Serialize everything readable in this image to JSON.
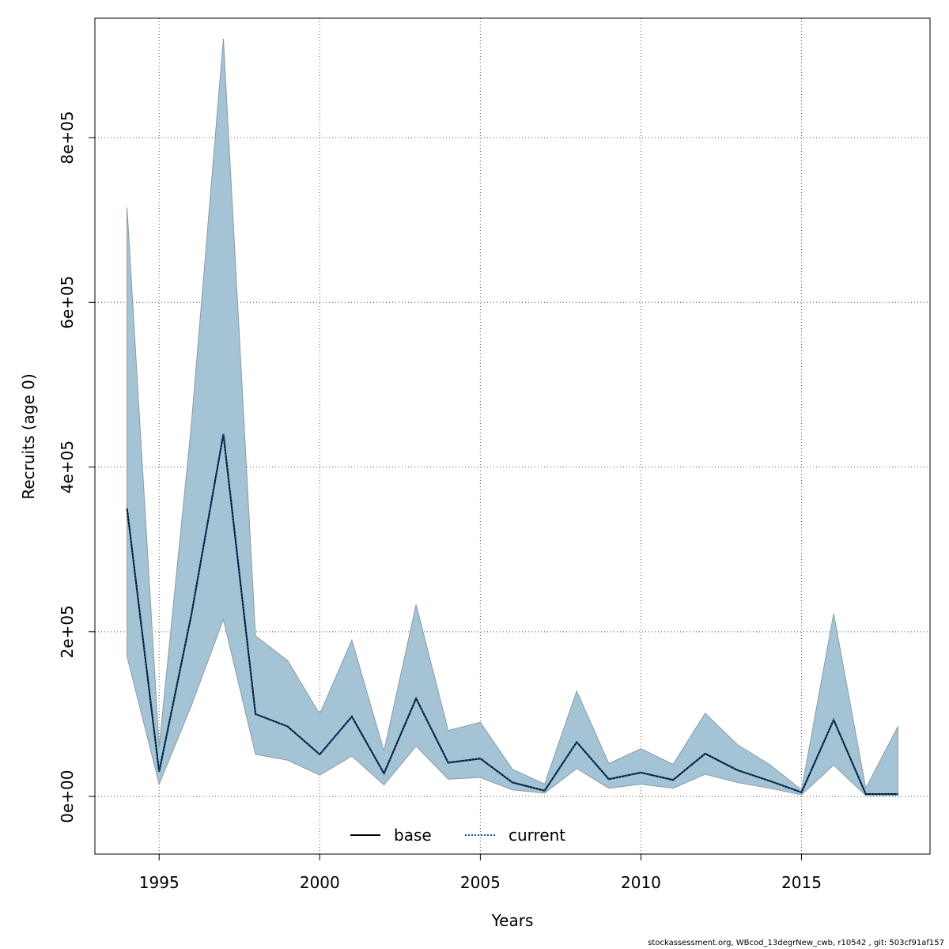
{
  "chart_data": {
    "type": "area",
    "xlabel": "Years",
    "ylabel": "Recruits (age 0)",
    "xlim": [
      1993,
      2019
    ],
    "ylim": [
      -70000,
      945000
    ],
    "x_ticks": [
      1995,
      2000,
      2005,
      2010,
      2015
    ],
    "x_tick_labels": [
      "1995",
      "2000",
      "2005",
      "2010",
      "2015"
    ],
    "y_ticks": [
      0,
      200000,
      400000,
      600000,
      800000
    ],
    "y_tick_labels": [
      "0e+00",
      "2e+05",
      "4e+05",
      "6e+05",
      "8e+05"
    ],
    "grid": true,
    "x": [
      1994,
      1995,
      1996,
      1997,
      1998,
      1999,
      2000,
      2001,
      2002,
      2003,
      2004,
      2005,
      2006,
      2007,
      2008,
      2009,
      2010,
      2011,
      2012,
      2013,
      2014,
      2015,
      2016,
      2017,
      2018
    ],
    "upper": [
      715000,
      60000,
      450000,
      920000,
      195000,
      165000,
      100000,
      190000,
      55000,
      233000,
      80000,
      90000,
      33000,
      15000,
      128000,
      40000,
      58000,
      39000,
      101000,
      63000,
      39000,
      8000,
      222000,
      10000,
      85000
    ],
    "lower": [
      170000,
      15000,
      110000,
      215000,
      51000,
      44000,
      26000,
      49000,
      14000,
      61000,
      21000,
      23000,
      8000,
      4000,
      34000,
      10000,
      15000,
      10000,
      27000,
      17000,
      10000,
      2000,
      38000,
      1000,
      1000
    ],
    "series": [
      {
        "name": "base",
        "style": "solid",
        "color": "#000000",
        "values": [
          350000,
          30000,
          220000,
          440000,
          100000,
          85000,
          51000,
          97000,
          28000,
          119000,
          41000,
          46000,
          17000,
          7000,
          66000,
          21000,
          29000,
          20000,
          52000,
          32000,
          19000,
          5000,
          93000,
          3000,
          3000
        ]
      },
      {
        "name": "current",
        "style": "dotted",
        "color": "#0b5394",
        "values": [
          350000,
          30000,
          220000,
          440000,
          100000,
          85000,
          51000,
          97000,
          28000,
          119000,
          41000,
          46000,
          17000,
          7000,
          66000,
          21000,
          29000,
          20000,
          52000,
          32000,
          19000,
          5000,
          93000,
          3000,
          3000
        ]
      }
    ],
    "band_color": "#a4c4d5",
    "band_edge_color": "#8a9aa5",
    "legend_position": "bottom",
    "legend": [
      "base",
      "current"
    ]
  },
  "footer": "stockassessment.org, WBcod_13degrNew_cwb, r10542 , git: 503cf91af157"
}
